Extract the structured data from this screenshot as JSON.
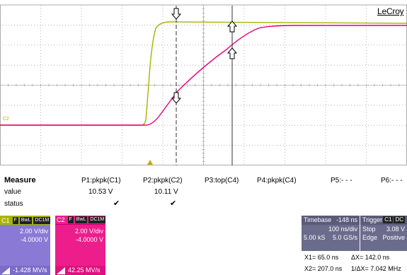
{
  "brand": "LeCroy",
  "scope": {
    "ground_marker": "C2",
    "colors": {
      "c1": "#a8b400",
      "c2": "#e8007a",
      "grid": "#9a9a9a",
      "background": "#ffffff",
      "cursor": "#333333"
    },
    "icons": [
      "cursor-arrow-down-icon",
      "cursor-arrow-up-icon",
      "trigger-marker-icon"
    ]
  },
  "measure": {
    "title": "Measure",
    "row_labels": {
      "value": "value",
      "status": "status"
    },
    "params": [
      {
        "label": "P1:pkpk(C1)",
        "value": "10.53 V",
        "status": "✔"
      },
      {
        "label": "P2:pkpk(C2)",
        "value": "10.11 V",
        "status": "✔"
      },
      {
        "label": "P3:top(C4)",
        "value": "",
        "status": ""
      },
      {
        "label": "P4:pkpk(C4)",
        "value": "",
        "status": ""
      },
      {
        "label": "P5:- - -",
        "value": "",
        "status": ""
      },
      {
        "label": "P6:- - -",
        "value": "",
        "status": ""
      }
    ]
  },
  "channels": [
    {
      "name": "C1",
      "tags": [
        "F",
        "BwL",
        "DC1M"
      ],
      "vdiv": "2.00 V/div",
      "offset": "-4.0000 V",
      "slew": "-1.428 MV/s",
      "color": "#8a7ad6"
    },
    {
      "name": "C2",
      "tags": [
        "F",
        "BwL",
        "DC1M"
      ],
      "vdiv": "2.00 V/div",
      "offset": "-4.0000 V",
      "slew": "42.25 MV/s",
      "color": "#ee1d8c"
    }
  ],
  "timebase": {
    "label": "Timebase",
    "delay": "-148 ns",
    "tdiv": "100 ns/div",
    "samples": "5.00 kS",
    "rate": "5.0 GS/s"
  },
  "trigger": {
    "label": "Trigger",
    "channel": "C1",
    "coupling": "DC",
    "mode": "Stop",
    "level": "3.08 V",
    "type": "Edge",
    "slope": "Positive"
  },
  "cursors": {
    "x1": "X1=   65.0 ns",
    "dx": "ΔX=    142.0 ns",
    "x2": "X2= 207.0 ns",
    "inv_dx": "1/ΔX= 7.042 MHz"
  }
}
